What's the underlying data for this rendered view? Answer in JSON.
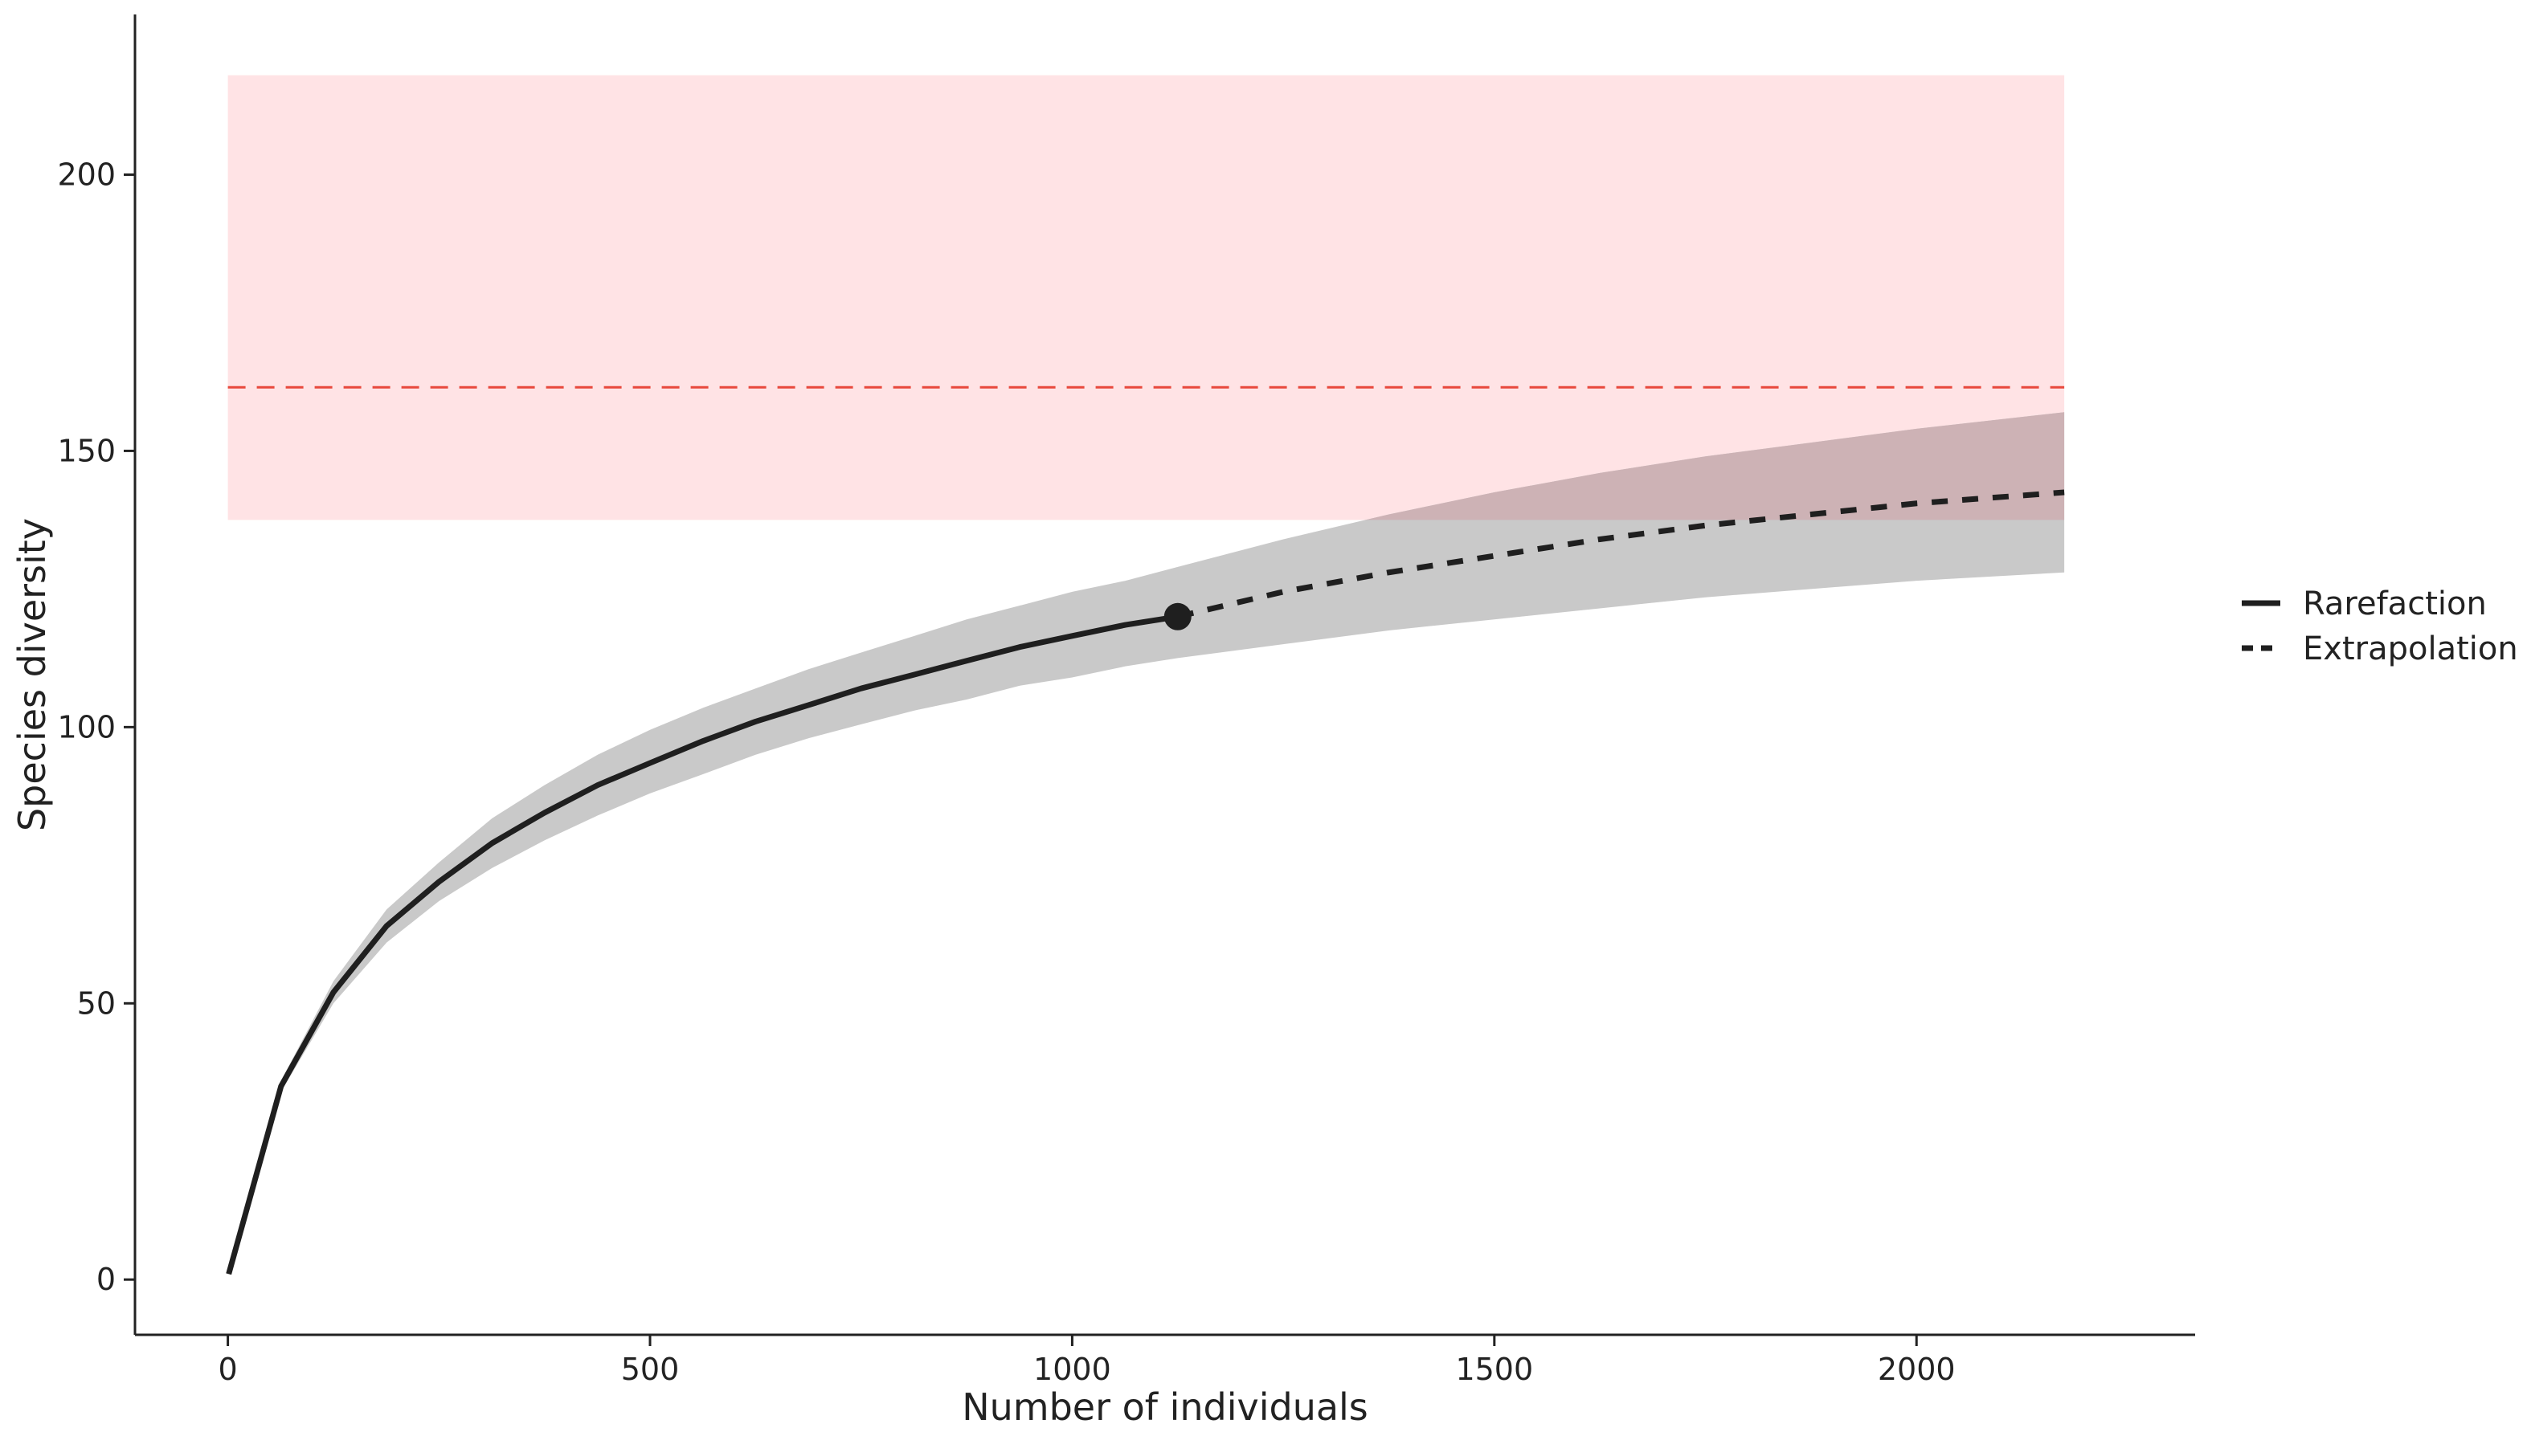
{
  "chart_data": {
    "type": "line",
    "title": "",
    "xlabel": "Number of individuals",
    "ylabel": "Species diversity",
    "xlim": [
      -110,
      2330
    ],
    "ylim": [
      -10,
      229
    ],
    "x_ticks": [
      0,
      500,
      1000,
      1500,
      2000
    ],
    "y_ticks": [
      0,
      50,
      100,
      150,
      200
    ],
    "grid": false,
    "legend_position": "right",
    "legend": [
      {
        "label": "Rarefaction",
        "linestyle": "solid"
      },
      {
        "label": "Extrapolation",
        "linestyle": "dashed"
      }
    ],
    "series": [
      {
        "name": "Rarefaction",
        "linestyle": "solid",
        "color": "#1f1f1f",
        "x": [
          1,
          63,
          125,
          188,
          250,
          313,
          375,
          438,
          500,
          563,
          625,
          688,
          750,
          813,
          875,
          938,
          1000,
          1063,
          1125
        ],
        "y": [
          1,
          35,
          52,
          64,
          72,
          79,
          84.5,
          89.5,
          93.5,
          97.5,
          101,
          104,
          107,
          109.5,
          112,
          114.5,
          116.5,
          118.5,
          120
        ],
        "lower": [
          1,
          34,
          50,
          61,
          68.5,
          74.5,
          79.5,
          84,
          88,
          91.5,
          95,
          98,
          100.5,
          103,
          105,
          107.5,
          109,
          111,
          112.5
        ],
        "upper": [
          1,
          36,
          54,
          67,
          75.5,
          83.5,
          89.5,
          95,
          99.5,
          103.5,
          107,
          110.5,
          113.5,
          116.5,
          119.5,
          122,
          124.5,
          126.5,
          129
        ]
      },
      {
        "name": "Extrapolation",
        "linestyle": "dashed",
        "color": "#1f1f1f",
        "x": [
          1125,
          1250,
          1375,
          1500,
          1625,
          1750,
          1875,
          2000,
          2175
        ],
        "y": [
          120,
          124.5,
          128,
          131,
          134,
          136.5,
          138.5,
          140.5,
          142.5
        ],
        "lower": [
          112.5,
          115,
          117.5,
          119.5,
          121.5,
          123.5,
          125,
          126.5,
          128
        ],
        "upper": [
          129,
          134,
          138.5,
          142.5,
          146,
          149,
          151.5,
          154,
          157
        ]
      }
    ],
    "observed_point": {
      "x": 1125,
      "y": 120,
      "color": "#1f1f1f"
    },
    "reference_line": {
      "y": 161.5,
      "color": "#e8483c",
      "linestyle": "dashed"
    },
    "reference_band": {
      "x": [
        0,
        2175
      ],
      "y": [
        137.5,
        218
      ],
      "color": "#ffe3e5"
    },
    "ci_band_color": "#c9c9c9",
    "overlap_color": "#cdb2b5"
  }
}
